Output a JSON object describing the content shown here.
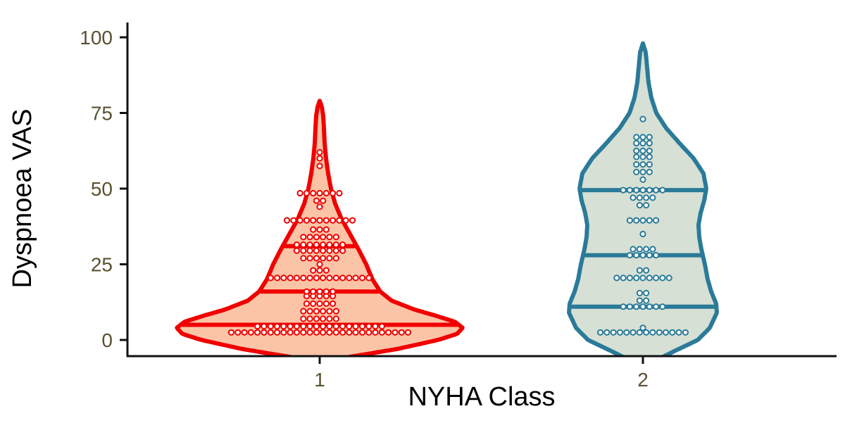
{
  "chart_data": {
    "type": "violin",
    "xlabel": "NYHA Class",
    "ylabel": "Dyspnoea VAS",
    "ylim": [
      -5,
      100
    ],
    "yticks": [
      0,
      25,
      50,
      75,
      100
    ],
    "categories": [
      "1",
      "2"
    ],
    "series": [
      {
        "category": "1",
        "stroke": "#f00000",
        "fill": "#fcc4a6",
        "quantiles": [
          5,
          16,
          31
        ],
        "violin_range": [
          -6,
          79
        ],
        "dot_rows": [
          {
            "y": 2.5,
            "count": 28
          },
          {
            "y": 4.5,
            "count": 20
          },
          {
            "y": 7,
            "count": 6
          },
          {
            "y": 9.5,
            "count": 6
          },
          {
            "y": 12,
            "count": 5
          },
          {
            "y": 14.5,
            "count": 5
          },
          {
            "y": 16,
            "count": 5
          },
          {
            "y": 20.5,
            "count": 16
          },
          {
            "y": 23,
            "count": 3
          },
          {
            "y": 25,
            "count": 1
          },
          {
            "y": 27,
            "count": 6
          },
          {
            "y": 29.5,
            "count": 8
          },
          {
            "y": 31.5,
            "count": 8
          },
          {
            "y": 34,
            "count": 6
          },
          {
            "y": 36.5,
            "count": 3
          },
          {
            "y": 39.5,
            "count": 11
          },
          {
            "y": 44,
            "count": 1
          },
          {
            "y": 46,
            "count": 2
          },
          {
            "y": 48.5,
            "count": 7
          },
          {
            "y": 57.5,
            "count": 1
          },
          {
            "y": 60,
            "count": 1
          },
          {
            "y": 62,
            "count": 1
          }
        ]
      },
      {
        "category": "2",
        "stroke": "#2a7a99",
        "fill": "#d6e0d4",
        "quantiles": [
          11,
          28,
          49.5
        ],
        "violin_range": [
          -6,
          98
        ],
        "dot_rows": [
          {
            "y": 2.5,
            "count": 14
          },
          {
            "y": 4,
            "count": 1
          },
          {
            "y": 11,
            "count": 7
          },
          {
            "y": 13,
            "count": 2
          },
          {
            "y": 15.5,
            "count": 2
          },
          {
            "y": 20.5,
            "count": 9
          },
          {
            "y": 23,
            "count": 2
          },
          {
            "y": 28,
            "count": 5
          },
          {
            "y": 30,
            "count": 4
          },
          {
            "y": 35,
            "count": 1
          },
          {
            "y": 39.5,
            "count": 5
          },
          {
            "y": 44.5,
            "count": 2
          },
          {
            "y": 47,
            "count": 4
          },
          {
            "y": 49.5,
            "count": 7
          },
          {
            "y": 53,
            "count": 1
          },
          {
            "y": 55.5,
            "count": 3
          },
          {
            "y": 58,
            "count": 3
          },
          {
            "y": 60.5,
            "count": 3
          },
          {
            "y": 62.5,
            "count": 3
          },
          {
            "y": 65,
            "count": 3
          },
          {
            "y": 67,
            "count": 3
          },
          {
            "y": 73,
            "count": 1
          }
        ]
      }
    ],
    "grid": false,
    "legend": "none"
  }
}
